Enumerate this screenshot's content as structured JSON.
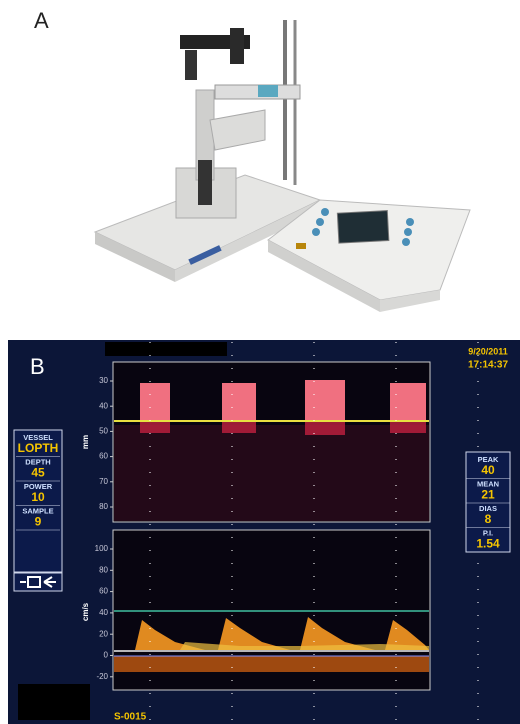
{
  "panel_a": {
    "label": "A"
  },
  "panel_b": {
    "label": "B",
    "date": "9/20/2011",
    "time": "17:14:37",
    "study_id": "S-0015",
    "left_panel": [
      {
        "label": "VESSEL",
        "value": "LOPTH"
      },
      {
        "label": "DEPTH",
        "value": "45"
      },
      {
        "label": "POWER",
        "value": "10"
      },
      {
        "label": "SAMPLE",
        "value": "9"
      }
    ],
    "right_panel": [
      {
        "label": "PEAK",
        "value": "40"
      },
      {
        "label": "MEAN",
        "value": "21"
      },
      {
        "label": "DIAS",
        "value": "8"
      },
      {
        "label": "P.I.",
        "value": "1.54"
      }
    ],
    "m_mode": {
      "unit": "mm",
      "ticks": [
        30,
        40,
        50,
        60,
        70,
        80
      ]
    },
    "doppler": {
      "unit": "cm/s",
      "ticks": [
        100,
        80,
        60,
        40,
        20,
        0,
        -20
      ]
    }
  }
}
